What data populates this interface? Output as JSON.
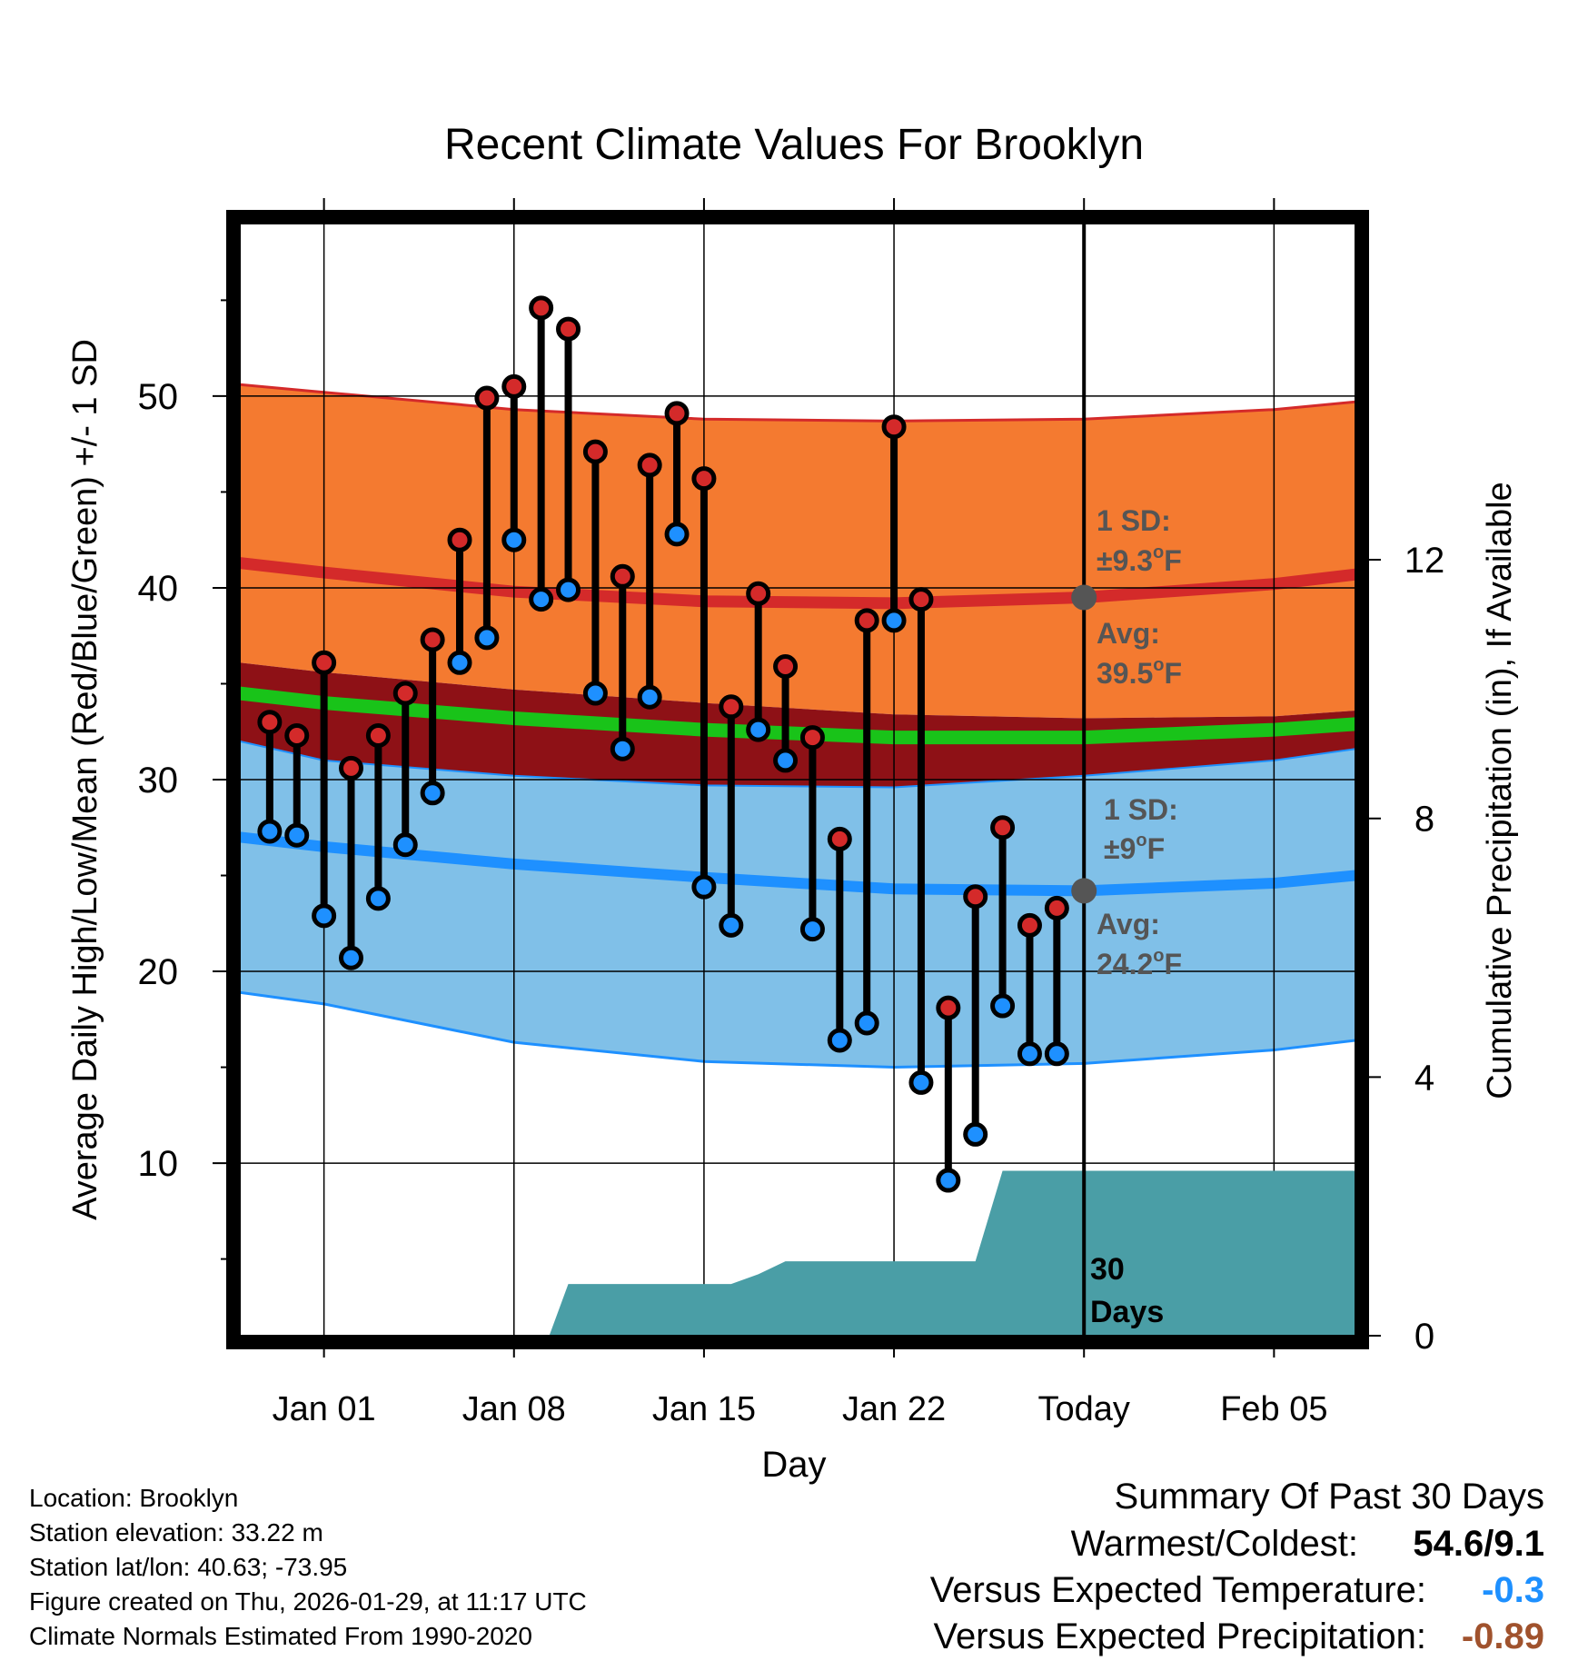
{
  "chart_data": {
    "type": "climate-range",
    "title": "Recent Climate Values For Brooklyn",
    "xlabel": "Day",
    "ylabel_left": "Average Daily High/Low/Mean (Red/Blue/Green) +/- 1 SD",
    "ylabel_right": "Cumulative Precipitation (in), If Available",
    "x_range_days": [
      -3.1,
      38.0
    ],
    "y_range_left": [
      1,
      59
    ],
    "y_range_right": [
      0,
      17.2
    ],
    "x_ticks": [
      {
        "day": 0,
        "label": "Jan 01"
      },
      {
        "day": 7,
        "label": "Jan 08"
      },
      {
        "day": 14,
        "label": "Jan 15"
      },
      {
        "day": 21,
        "label": "Jan 22"
      },
      {
        "day": 28,
        "label": "Today"
      },
      {
        "day": 35,
        "label": "Feb 05"
      }
    ],
    "y_ticks_left": [
      "10",
      "20",
      "30",
      "40",
      "50"
    ],
    "y_ticks_right": [
      "0",
      "4",
      "8",
      "12"
    ],
    "today_day": 28,
    "observations": {
      "day": [
        -2,
        -1,
        0,
        1,
        2,
        3,
        4,
        5,
        6,
        7,
        8,
        9,
        10,
        11,
        12,
        13,
        14,
        15,
        16,
        17,
        18,
        19,
        20,
        21,
        22,
        23,
        24,
        25,
        26,
        27
      ],
      "high": [
        33.0,
        32.3,
        36.1,
        30.6,
        32.3,
        34.5,
        37.3,
        42.5,
        49.9,
        50.5,
        54.6,
        53.5,
        47.1,
        40.6,
        46.4,
        49.1,
        45.7,
        33.8,
        39.7,
        35.9,
        32.2,
        26.9,
        38.3,
        48.4,
        39.4,
        18.1,
        23.9,
        27.5,
        22.4,
        23.3
      ],
      "low": [
        27.3,
        27.1,
        22.9,
        20.7,
        23.8,
        26.6,
        29.3,
        36.1,
        37.4,
        42.5,
        39.4,
        39.9,
        34.5,
        31.6,
        34.3,
        42.8,
        24.4,
        22.4,
        32.6,
        31.0,
        22.2,
        16.4,
        17.3,
        38.3,
        14.2,
        9.1,
        11.5,
        18.2,
        15.7,
        15.7
      ]
    },
    "normals": {
      "day": [
        -3.1,
        0,
        7,
        14,
        21,
        28,
        35,
        38.0
      ],
      "high_avg": [
        41.3,
        40.8,
        39.8,
        39.3,
        39.2,
        39.5,
        40.2,
        40.7
      ],
      "high_sd_upper": [
        50.6,
        50.2,
        49.3,
        48.8,
        48.7,
        48.8,
        49.3,
        49.7
      ],
      "high_sd_lower": [
        36.1,
        35.6,
        34.7,
        34.0,
        33.4,
        33.2,
        33.3,
        33.6
      ],
      "mean_avg": [
        34.5,
        34.0,
        33.2,
        32.6,
        32.2,
        32.2,
        32.6,
        32.9
      ],
      "low_avg": [
        27.0,
        26.5,
        25.6,
        24.9,
        24.3,
        24.2,
        24.6,
        25.0
      ],
      "low_sd_upper": [
        32.0,
        31.0,
        30.2,
        29.7,
        29.6,
        30.2,
        31.0,
        31.6
      ],
      "low_sd_lower": [
        18.9,
        18.3,
        16.3,
        15.3,
        15.0,
        15.2,
        15.9,
        16.4
      ]
    },
    "precip_cumulative": {
      "day": [
        -3.1,
        8.3,
        9.0,
        15.0,
        16.0,
        17.0,
        20.0,
        24.0,
        25.0,
        38.0
      ],
      "value": [
        0,
        0,
        0.8,
        0.8,
        0.95,
        1.15,
        1.15,
        1.15,
        2.55,
        2.55
      ]
    },
    "annotations": {
      "high_sd_label": "1 SD:",
      "high_sd_value": "±9.3",
      "high_avg_label": "Avg:",
      "high_avg_value": "39.5",
      "low_sd_label": "1 SD:",
      "low_sd_value": "±9",
      "low_avg_label": "Avg:",
      "low_avg_value": "24.2",
      "degree_symbol": "o",
      "unit": "F",
      "precip_label_line1": "30",
      "precip_label_line2": "Days"
    },
    "colors": {
      "high_band": "#f47a30",
      "high_line": "#d42a2a",
      "overlap_band": "#8e1116",
      "mean_line": "#19c319",
      "low_band": "#80c0e8",
      "low_line": "#1e90ff",
      "precip": "#4a9ea6",
      "high_dot": "#d42a2a",
      "low_dot": "#1e90ff",
      "annotation": "#555555"
    }
  },
  "info": {
    "location": "Location: Brooklyn",
    "elevation": "Station elevation: 33.22 m",
    "latlon": "Station lat/lon: 40.63; -73.95",
    "created": "Figure created on Thu, 2026-01-29, at 11:17 UTC",
    "normals": "Climate Normals Estimated From 1990-2020"
  },
  "summary": {
    "title": "Summary Of Past 30 Days",
    "warmest_label": "Warmest/Coldest:",
    "warmest_value": "54.6/9.1",
    "temp_label": "Versus Expected Temperature:",
    "temp_value": "-0.3",
    "temp_color": "#1e90ff",
    "precip_label": "Versus Expected Precipitation:",
    "precip_value": "-0.89",
    "precip_color": "#a0522d"
  }
}
